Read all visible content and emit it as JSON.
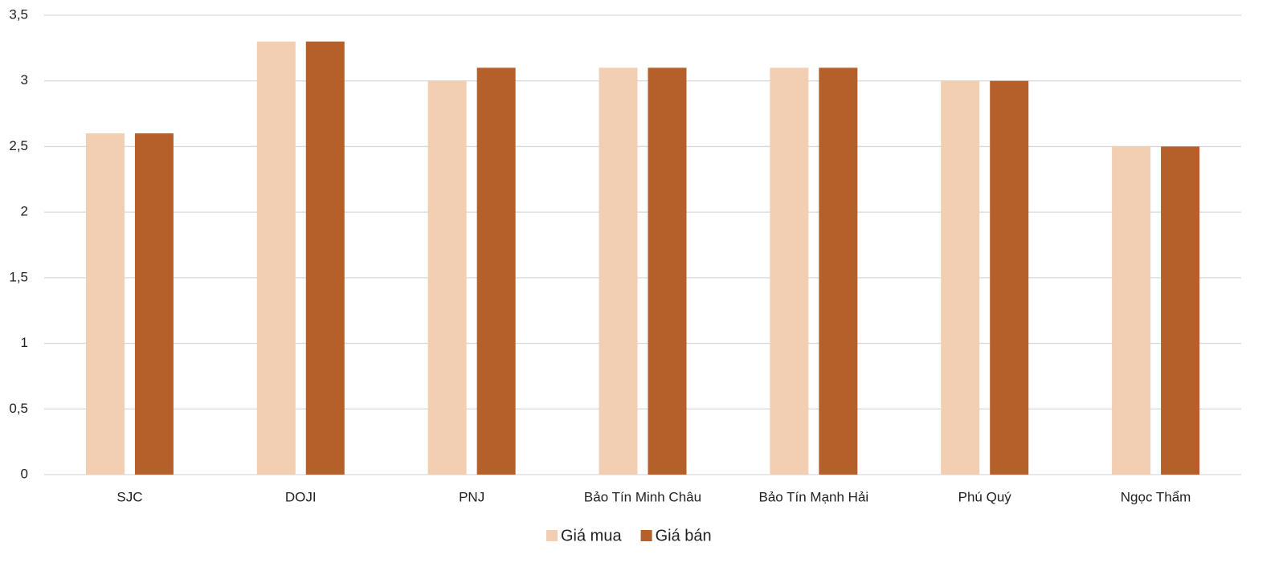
{
  "chart_data": {
    "type": "bar",
    "categories": [
      "SJC",
      "DOJI",
      "PNJ",
      "Bảo Tín Minh Châu",
      "Bảo Tín Mạnh Hải",
      "Phú Quý",
      "Ngọc Thẩm"
    ],
    "series": [
      {
        "name": "Giá mua",
        "color": "#f2cfb2",
        "values": [
          2.6,
          3.3,
          3.0,
          3.1,
          3.1,
          3.0,
          2.5
        ]
      },
      {
        "name": "Giá bán",
        "color": "#b5602a",
        "values": [
          2.6,
          3.3,
          3.1,
          3.1,
          3.1,
          3.0,
          2.5
        ]
      }
    ],
    "ylim": [
      0,
      3.5
    ],
    "yticks": [
      0,
      {
        "value": 0.5,
        "label": "0,5"
      },
      1,
      {
        "value": 1.5,
        "label": "1,5"
      },
      2,
      {
        "value": 2.5,
        "label": "2,5"
      },
      3,
      {
        "value": 3.5,
        "label": "3,5"
      }
    ],
    "grid": true,
    "legend": "bottom"
  }
}
